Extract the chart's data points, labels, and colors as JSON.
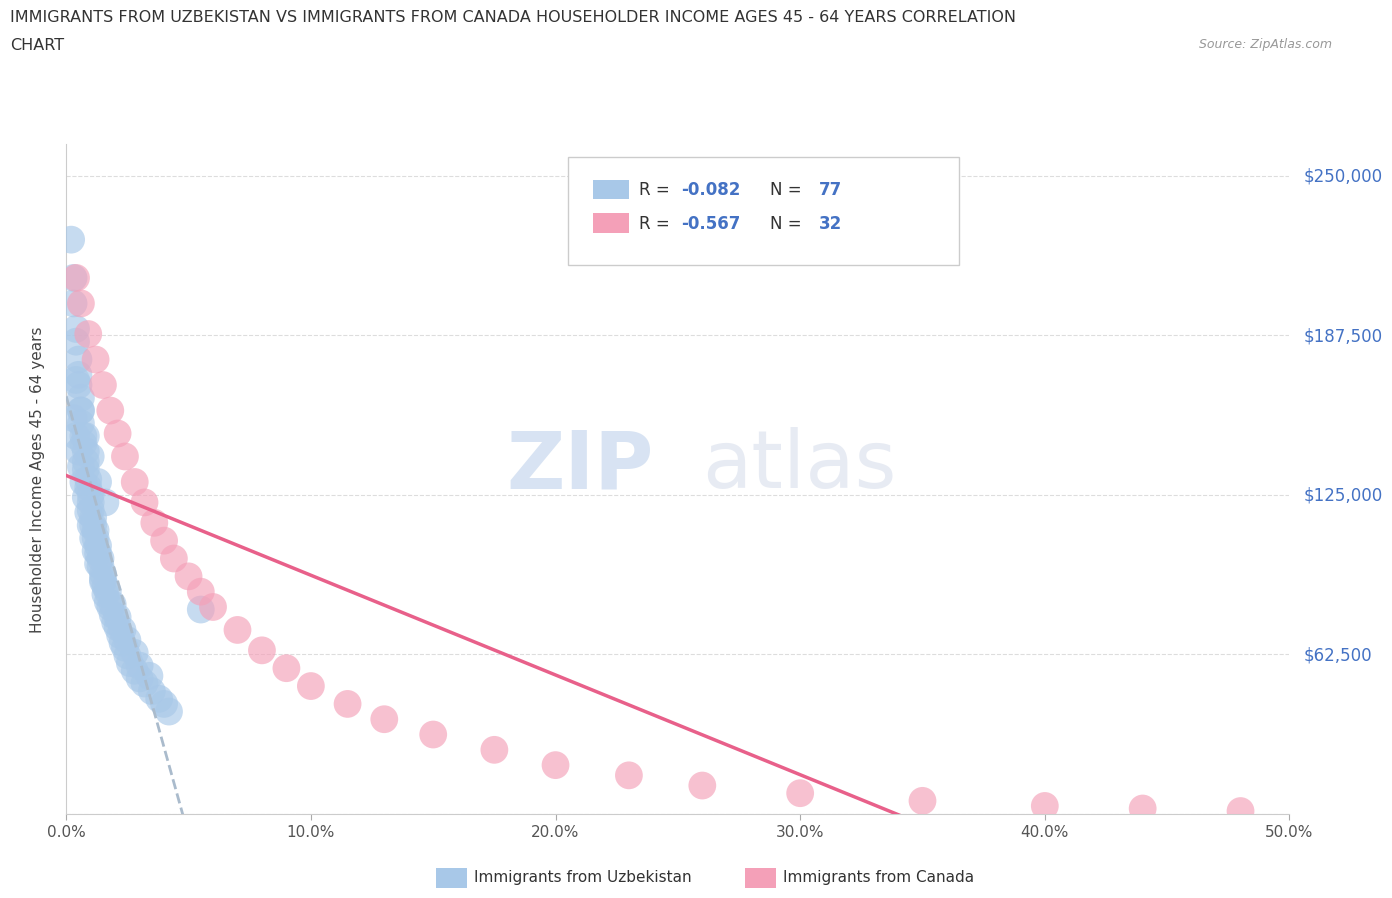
{
  "title_line1": "IMMIGRANTS FROM UZBEKISTAN VS IMMIGRANTS FROM CANADA HOUSEHOLDER INCOME AGES 45 - 64 YEARS CORRELATION",
  "title_line2": "CHART",
  "source": "Source: ZipAtlas.com",
  "ylabel": "Householder Income Ages 45 - 64 years",
  "xmin": 0.0,
  "xmax": 0.5,
  "ymin": 0,
  "ymax": 262500,
  "yticks": [
    0,
    62500,
    125000,
    187500,
    250000
  ],
  "ytick_labels": [
    "",
    "$62,500",
    "$125,000",
    "$187,500",
    "$250,000"
  ],
  "xticks": [
    0.0,
    0.1,
    0.2,
    0.3,
    0.4,
    0.5
  ],
  "xtick_labels": [
    "0.0%",
    "10.0%",
    "20.0%",
    "30.0%",
    "40.0%",
    "50.0%"
  ],
  "uzbekistan_color": "#a8c8e8",
  "canada_color": "#f4a0b8",
  "accent_color": "#4472C4",
  "background_color": "#ffffff",
  "grid_color": "#dddddd",
  "trendline_uzbekistan_color": "#aabbcc",
  "trendline_canada_color": "#e8608a",
  "uzbekistan_x": [
    0.002,
    0.003,
    0.003,
    0.004,
    0.004,
    0.005,
    0.005,
    0.005,
    0.006,
    0.006,
    0.006,
    0.007,
    0.007,
    0.008,
    0.008,
    0.008,
    0.009,
    0.009,
    0.01,
    0.01,
    0.01,
    0.011,
    0.011,
    0.012,
    0.012,
    0.013,
    0.013,
    0.014,
    0.014,
    0.015,
    0.015,
    0.016,
    0.016,
    0.017,
    0.018,
    0.019,
    0.02,
    0.021,
    0.022,
    0.023,
    0.024,
    0.025,
    0.026,
    0.028,
    0.03,
    0.032,
    0.035,
    0.038,
    0.04,
    0.042,
    0.003,
    0.004,
    0.005,
    0.006,
    0.007,
    0.008,
    0.009,
    0.01,
    0.011,
    0.012,
    0.013,
    0.015,
    0.017,
    0.019,
    0.021,
    0.023,
    0.025,
    0.028,
    0.03,
    0.034,
    0.004,
    0.006,
    0.008,
    0.01,
    0.013,
    0.016,
    0.055
  ],
  "uzbekistan_y": [
    225000,
    210000,
    200000,
    190000,
    185000,
    178000,
    172000,
    168000,
    163000,
    158000,
    153000,
    148000,
    145000,
    142000,
    138000,
    135000,
    131000,
    128000,
    125000,
    122000,
    119000,
    116000,
    113000,
    111000,
    108000,
    105000,
    102000,
    100000,
    97000,
    94000,
    91000,
    89000,
    86000,
    83000,
    81000,
    78000,
    75000,
    73000,
    70000,
    67000,
    65000,
    62000,
    59000,
    56000,
    53000,
    51000,
    48000,
    45000,
    43000,
    40000,
    155000,
    148000,
    142000,
    136000,
    130000,
    124000,
    118000,
    113000,
    108000,
    103000,
    98000,
    92000,
    87000,
    82000,
    77000,
    72000,
    68000,
    63000,
    58000,
    54000,
    170000,
    158000,
    148000,
    140000,
    130000,
    122000,
    80000
  ],
  "canada_x": [
    0.004,
    0.006,
    0.009,
    0.012,
    0.015,
    0.018,
    0.021,
    0.024,
    0.028,
    0.032,
    0.036,
    0.04,
    0.044,
    0.05,
    0.055,
    0.06,
    0.07,
    0.08,
    0.09,
    0.1,
    0.115,
    0.13,
    0.15,
    0.175,
    0.2,
    0.23,
    0.26,
    0.3,
    0.35,
    0.4,
    0.44,
    0.48
  ],
  "canada_y": [
    210000,
    200000,
    188000,
    178000,
    168000,
    158000,
    149000,
    140000,
    130000,
    122000,
    114000,
    107000,
    100000,
    93000,
    87000,
    81000,
    72000,
    64000,
    57000,
    50000,
    43000,
    37000,
    31000,
    25000,
    19000,
    15000,
    11000,
    8000,
    5000,
    3000,
    2000,
    1000
  ],
  "watermark_zip": "ZIP",
  "watermark_atlas": "atlas"
}
